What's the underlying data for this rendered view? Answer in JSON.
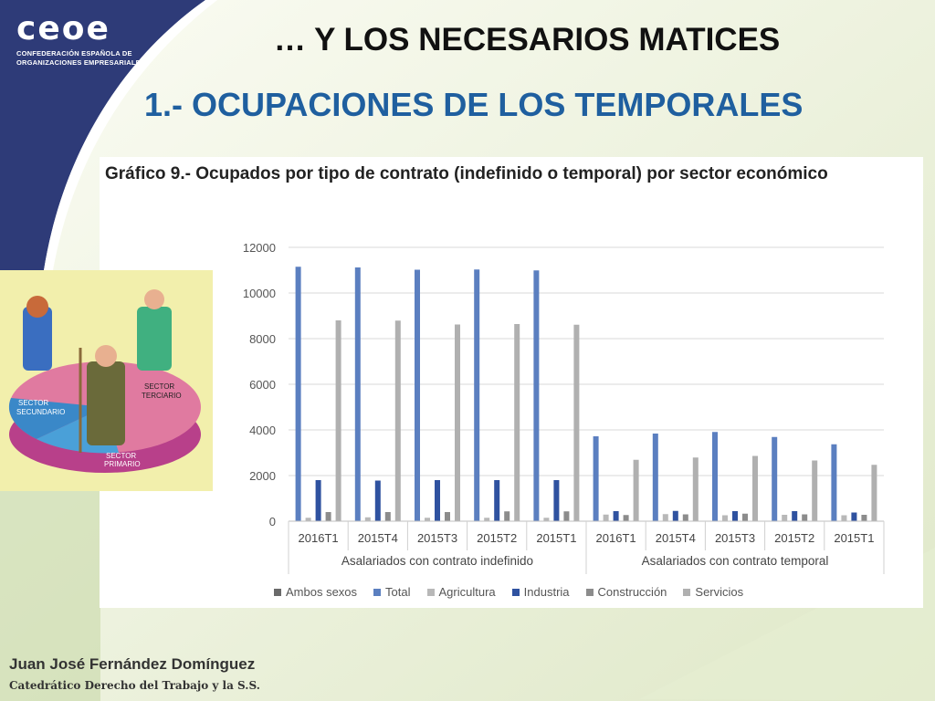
{
  "logo": {
    "text": "ceoe",
    "subtitle_line1": "CONFEDERACIÓN ESPAÑOLA DE",
    "subtitle_line2": "ORGANIZACIONES EMPRESARIALES"
  },
  "slide": {
    "title": "… Y LOS NECESARIOS MATICES",
    "subtitle": "1.- OCUPACIONES DE LOS TEMPORALES"
  },
  "illustration": {
    "labels": [
      "SECTOR SECUNDARIO",
      "SECTOR TERCIARIO",
      "SECTOR PRIMARIO"
    ]
  },
  "footer": {
    "name": "Juan José Fernández Domínguez",
    "role": "Catedrático Derecho del Trabajo y la S.S."
  },
  "colors": {
    "navy": "#2e3b78",
    "title_blue": "#1f5f9f",
    "total": "#5b7fc0",
    "industria": "#2f52a0",
    "agricultura": "#b8b8b8",
    "construccion": "#8c8c8c",
    "servicios": "#b0b0b0",
    "ambos": "#6a6a6a"
  },
  "chart_data": {
    "type": "bar",
    "title": "Gráfico 9.- Ocupados por tipo de contrato (indefinido o temporal) por sector económico",
    "ylim": [
      0,
      12000
    ],
    "yticks": [
      0,
      2000,
      4000,
      6000,
      8000,
      10000,
      12000
    ],
    "grid": true,
    "legend_position": "bottom",
    "groups": [
      "Asalariados con contrato indefinido",
      "Asalariados con contrato temporal"
    ],
    "categories": [
      "2016T1",
      "2015T4",
      "2015T3",
      "2015T2",
      "2015T1",
      "2016T1",
      "2015T4",
      "2015T3",
      "2015T2",
      "2015T1"
    ],
    "series": [
      {
        "name": "Ambos sexos",
        "values": [
          null,
          null,
          null,
          null,
          null,
          null,
          null,
          null,
          null,
          null
        ]
      },
      {
        "name": "Total",
        "values": [
          11150,
          11120,
          11020,
          11030,
          10990,
          3720,
          3840,
          3910,
          3690,
          3370
        ]
      },
      {
        "name": "Agricultura",
        "values": [
          150,
          170,
          150,
          150,
          150,
          290,
          310,
          260,
          280,
          260
        ]
      },
      {
        "name": "Industria",
        "values": [
          1800,
          1780,
          1800,
          1800,
          1800,
          440,
          450,
          440,
          440,
          380
        ]
      },
      {
        "name": "Construcción",
        "values": [
          400,
          400,
          400,
          430,
          430,
          270,
          300,
          330,
          300,
          280
        ]
      },
      {
        "name": "Servicios",
        "values": [
          8800,
          8790,
          8620,
          8640,
          8610,
          2690,
          2790,
          2860,
          2660,
          2470
        ]
      }
    ]
  }
}
